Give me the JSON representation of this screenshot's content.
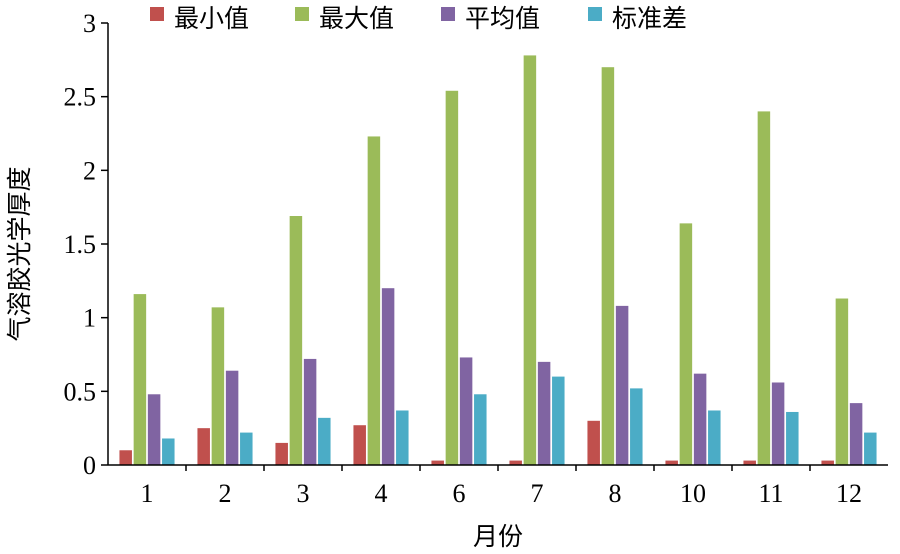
{
  "chart_data": {
    "type": "bar",
    "title": "",
    "xlabel": "月份",
    "ylabel": "气溶胶光学厚度",
    "categories": [
      "1",
      "2",
      "3",
      "4",
      "6",
      "7",
      "8",
      "10",
      "11",
      "12"
    ],
    "ylim": [
      0,
      3
    ],
    "yticks": [
      "0",
      "0.5",
      "1",
      "1.5",
      "2",
      "2.5",
      "3"
    ],
    "grid": false,
    "legend_position": "top",
    "series": [
      {
        "name": "最小值",
        "color": "#c0504d",
        "values": [
          0.1,
          0.25,
          0.15,
          0.27,
          0.03,
          0.03,
          0.3,
          0.03,
          0.03,
          0.03
        ]
      },
      {
        "name": "最大值",
        "color": "#9bbb59",
        "values": [
          1.16,
          1.07,
          1.69,
          2.23,
          2.54,
          2.78,
          2.7,
          1.64,
          2.4,
          1.13
        ]
      },
      {
        "name": "平均值",
        "color": "#8064a2",
        "values": [
          0.48,
          0.64,
          0.72,
          1.2,
          0.73,
          0.7,
          1.08,
          0.62,
          0.56,
          0.42
        ]
      },
      {
        "name": "标准差",
        "color": "#4bacc6",
        "values": [
          0.18,
          0.22,
          0.32,
          0.37,
          0.48,
          0.6,
          0.52,
          0.37,
          0.36,
          0.22
        ]
      }
    ]
  }
}
